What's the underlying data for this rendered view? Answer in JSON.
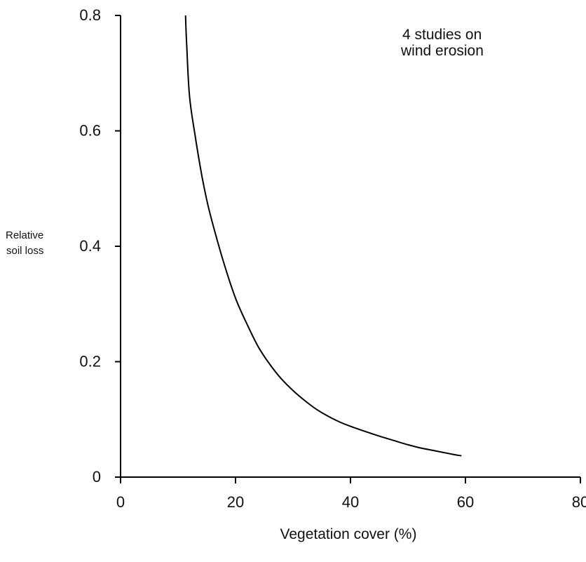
{
  "chart_data": {
    "type": "line",
    "title": "",
    "xlabel": "Vegetation cover (%)",
    "ylabel_lines": [
      "Relative",
      "soil loss"
    ],
    "xlim": [
      0,
      80
    ],
    "ylim": [
      0,
      0.8
    ],
    "x_ticks": [
      0,
      20,
      40,
      60,
      80
    ],
    "x_tick_labels": [
      "0",
      "20",
      "40",
      "60",
      "80"
    ],
    "y_ticks": [
      0,
      0.2,
      0.4,
      0.6,
      0.8
    ],
    "y_tick_labels": [
      "0",
      "0.2",
      "0.4",
      "0.6",
      "0.8"
    ],
    "grid": false,
    "annotation_lines": [
      "4 studies on",
      "wind erosion"
    ],
    "colors": {
      "line": "#000000",
      "axis": "#000000",
      "text": "#111111"
    },
    "series": [
      {
        "x": [
          11.3,
          11.5,
          12,
          13,
          14,
          15,
          16,
          18,
          20,
          22,
          24,
          26,
          28,
          30,
          32,
          34,
          36,
          38,
          40,
          42,
          45,
          48,
          50,
          52,
          55,
          58,
          59.3
        ],
        "values": [
          0.8,
          0.75,
          0.66,
          0.59,
          0.53,
          0.48,
          0.44,
          0.37,
          0.31,
          0.265,
          0.225,
          0.195,
          0.17,
          0.15,
          0.133,
          0.118,
          0.106,
          0.096,
          0.088,
          0.081,
          0.071,
          0.062,
          0.056,
          0.051,
          0.045,
          0.039,
          0.037
        ]
      }
    ]
  }
}
